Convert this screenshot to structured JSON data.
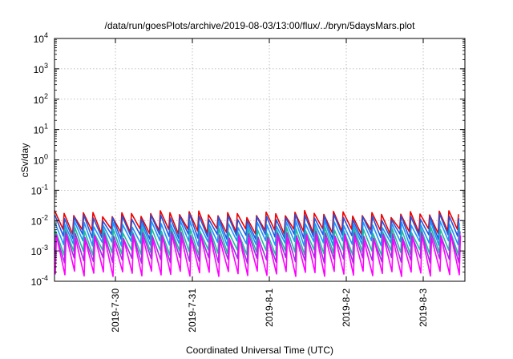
{
  "chart_data": {
    "type": "line",
    "title": "/data/run/goesPlots/archive/2019-08-03/13:00/flux/../bryn/5daysMars.plot",
    "xlabel": "Coordinated Universal Time (UTC)",
    "ylabel": "cSv/day",
    "yscale": "log",
    "ylim": [
      0.0001,
      10000
    ],
    "y_tick_labels": [
      {
        "base": "10",
        "exp": "-4"
      },
      {
        "base": "10",
        "exp": "-3"
      },
      {
        "base": "10",
        "exp": "-2"
      },
      {
        "base": "10",
        "exp": "-1"
      },
      {
        "base": "10",
        "exp": "0"
      },
      {
        "base": "10",
        "exp": "1"
      },
      {
        "base": "10",
        "exp": "2"
      },
      {
        "base": "10",
        "exp": "3"
      },
      {
        "base": "10",
        "exp": "4"
      }
    ],
    "x_ticks": [
      "2019-7-30",
      "2019-7-31",
      "2019-8-1",
      "2019-8-2",
      "2019-8-3"
    ],
    "xlim": [
      "2019-07-29 05:00",
      "2019-08-03 13:00"
    ],
    "grid": true,
    "series_colors": [
      "#ee0000",
      "#2255dd",
      "#1f8fff",
      "#22bb99",
      "#9933dd",
      "#ff00ff"
    ],
    "sawtooth": {
      "period_hours": 3,
      "series": [
        {
          "peak": 0.017,
          "trough": 0.0045
        },
        {
          "peak": 0.013,
          "trough": 0.003
        },
        {
          "peak": 0.008,
          "trough": 0.0018
        },
        {
          "peak": 0.005,
          "trough": 0.0009
        },
        {
          "peak": 0.0035,
          "trough": 0.0005
        },
        {
          "peak": 0.0028,
          "trough": 0.00018
        }
      ]
    }
  }
}
